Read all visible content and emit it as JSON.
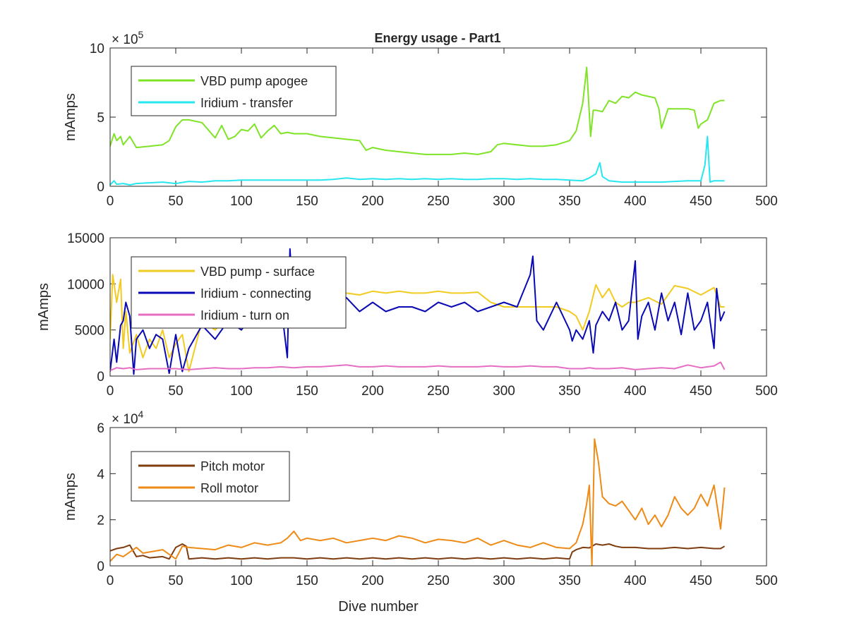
{
  "title": "Energy usage - Part1",
  "chart_data": [
    {
      "type": "line",
      "title": "Energy usage - Part1",
      "ylabel": "mAmps",
      "xlabel": "",
      "xlim": [
        0,
        500
      ],
      "ylim": [
        0,
        1000000
      ],
      "x_ticks": [
        0,
        50,
        100,
        150,
        200,
        250,
        300,
        350,
        400,
        450,
        500
      ],
      "y_ticks": [
        0,
        500000,
        1000000
      ],
      "y_tick_labels": [
        "0",
        "5",
        "10"
      ],
      "exponent_label": "× 10^5",
      "legend_location": "top-left",
      "series": [
        {
          "name": "VBD pump apogee",
          "color": "#7fe326",
          "x": [
            0,
            3,
            5,
            8,
            10,
            15,
            20,
            30,
            40,
            45,
            50,
            55,
            60,
            70,
            80,
            85,
            90,
            95,
            100,
            105,
            110,
            115,
            120,
            125,
            130,
            135,
            140,
            150,
            160,
            170,
            180,
            190,
            195,
            200,
            210,
            220,
            230,
            240,
            250,
            260,
            270,
            280,
            290,
            295,
            300,
            310,
            320,
            330,
            340,
            350,
            355,
            360,
            363,
            366,
            368,
            370,
            375,
            380,
            385,
            390,
            395,
            400,
            405,
            410,
            415,
            418,
            420,
            425,
            430,
            435,
            440,
            445,
            448,
            450,
            455,
            460,
            465,
            468
          ],
          "y": [
            290000,
            380000,
            330000,
            360000,
            300000,
            360000,
            280000,
            290000,
            300000,
            330000,
            430000,
            480000,
            480000,
            460000,
            350000,
            440000,
            340000,
            360000,
            410000,
            400000,
            450000,
            350000,
            400000,
            440000,
            380000,
            390000,
            380000,
            380000,
            360000,
            350000,
            340000,
            330000,
            260000,
            280000,
            260000,
            250000,
            240000,
            230000,
            230000,
            230000,
            240000,
            230000,
            250000,
            300000,
            310000,
            300000,
            290000,
            290000,
            300000,
            330000,
            400000,
            600000,
            860000,
            360000,
            550000,
            550000,
            540000,
            620000,
            600000,
            650000,
            640000,
            680000,
            660000,
            650000,
            640000,
            560000,
            420000,
            560000,
            560000,
            560000,
            560000,
            550000,
            420000,
            450000,
            480000,
            600000,
            620000,
            620000
          ]
        },
        {
          "name": "Iridium - transfer",
          "color": "#26e6f0",
          "x": [
            0,
            3,
            5,
            10,
            15,
            20,
            30,
            40,
            50,
            60,
            70,
            80,
            90,
            100,
            110,
            120,
            130,
            140,
            150,
            160,
            170,
            180,
            190,
            200,
            210,
            220,
            230,
            240,
            250,
            260,
            270,
            280,
            290,
            300,
            310,
            320,
            330,
            340,
            350,
            360,
            365,
            370,
            373,
            375,
            380,
            390,
            400,
            410,
            420,
            430,
            440,
            450,
            453,
            455,
            457,
            460,
            465,
            468
          ],
          "y": [
            10000,
            40000,
            15000,
            20000,
            10000,
            20000,
            25000,
            30000,
            20000,
            35000,
            30000,
            40000,
            40000,
            45000,
            45000,
            45000,
            45000,
            45000,
            45000,
            45000,
            50000,
            60000,
            50000,
            55000,
            50000,
            55000,
            50000,
            55000,
            50000,
            55000,
            50000,
            50000,
            55000,
            55000,
            50000,
            55000,
            50000,
            50000,
            45000,
            40000,
            60000,
            90000,
            170000,
            70000,
            40000,
            30000,
            30000,
            30000,
            30000,
            35000,
            40000,
            40000,
            150000,
            360000,
            30000,
            40000,
            40000,
            40000
          ]
        }
      ]
    },
    {
      "type": "line",
      "title": "",
      "ylabel": "mAmps",
      "xlabel": "",
      "xlim": [
        0,
        500
      ],
      "ylim": [
        0,
        15000
      ],
      "x_ticks": [
        0,
        50,
        100,
        150,
        200,
        250,
        300,
        350,
        400,
        450,
        500
      ],
      "y_ticks": [
        0,
        5000,
        10000,
        15000
      ],
      "y_tick_labels": [
        "0",
        "5000",
        "10000",
        "15000"
      ],
      "legend_location": "top-left",
      "series": [
        {
          "name": "VBD pump - surface",
          "color": "#f2cb21",
          "x": [
            0,
            2,
            5,
            8,
            10,
            12,
            15,
            20,
            25,
            30,
            35,
            40,
            45,
            50,
            55,
            60,
            70,
            80,
            90,
            100,
            110,
            120,
            130,
            140,
            150,
            160,
            170,
            180,
            190,
            200,
            210,
            220,
            230,
            240,
            250,
            260,
            270,
            280,
            290,
            300,
            310,
            320,
            330,
            340,
            350,
            355,
            360,
            365,
            370,
            375,
            380,
            385,
            390,
            395,
            400,
            410,
            420,
            430,
            440,
            450,
            460,
            465,
            468
          ],
          "y": [
            4000,
            11000,
            8000,
            10500,
            3000,
            7000,
            2500,
            4500,
            2000,
            4000,
            3000,
            5000,
            2000,
            3500,
            4500,
            500,
            6000,
            5000,
            6500,
            5500,
            7000,
            6000,
            7500,
            6500,
            8000,
            7000,
            8500,
            9000,
            8800,
            9200,
            9000,
            9200,
            9000,
            9000,
            9200,
            9000,
            9000,
            9100,
            8000,
            7500,
            7500,
            7500,
            7500,
            7500,
            7000,
            6500,
            5000,
            7000,
            9900,
            8500,
            9500,
            8000,
            7500,
            8000,
            8000,
            8500,
            7800,
            9800,
            9500,
            8800,
            9600,
            7500,
            7500
          ]
        },
        {
          "name": "Iridium - connecting",
          "color": "#0a0ab4",
          "x": [
            0,
            3,
            5,
            8,
            10,
            12,
            15,
            18,
            20,
            25,
            30,
            35,
            40,
            45,
            50,
            55,
            60,
            70,
            80,
            90,
            100,
            110,
            120,
            130,
            135,
            137,
            140,
            150,
            160,
            170,
            180,
            190,
            200,
            210,
            220,
            230,
            240,
            250,
            260,
            270,
            280,
            290,
            300,
            310,
            320,
            322,
            325,
            330,
            340,
            350,
            352,
            355,
            360,
            365,
            368,
            370,
            375,
            380,
            385,
            390,
            395,
            400,
            402,
            405,
            410,
            415,
            420,
            425,
            430,
            435,
            440,
            445,
            450,
            455,
            460,
            462,
            465,
            468
          ],
          "y": [
            500,
            4000,
            1500,
            5500,
            6000,
            8000,
            6500,
            200,
            4000,
            5000,
            3000,
            4500,
            4000,
            300,
            4500,
            500,
            3000,
            5500,
            4000,
            6000,
            5000,
            7000,
            6000,
            8000,
            2000,
            13800,
            7000,
            8000,
            6000,
            7500,
            8500,
            7000,
            8000,
            7000,
            7500,
            7500,
            7000,
            8000,
            7500,
            8000,
            7000,
            7500,
            8000,
            7500,
            11000,
            13000,
            6000,
            5000,
            8000,
            5000,
            3800,
            5000,
            4000,
            6000,
            2500,
            5500,
            7000,
            6000,
            8000,
            5000,
            6000,
            12500,
            4000,
            6500,
            8000,
            5000,
            9000,
            6000,
            8000,
            4500,
            9000,
            5000,
            6000,
            8000,
            3000,
            9500,
            6000,
            7000
          ]
        },
        {
          "name": "Iridium - turn on",
          "color": "#e66ec2",
          "x": [
            0,
            5,
            10,
            15,
            20,
            30,
            40,
            50,
            60,
            70,
            80,
            90,
            100,
            110,
            120,
            130,
            140,
            150,
            160,
            170,
            180,
            190,
            200,
            210,
            220,
            230,
            240,
            250,
            260,
            270,
            280,
            290,
            300,
            310,
            320,
            330,
            340,
            350,
            360,
            365,
            370,
            380,
            390,
            400,
            410,
            420,
            430,
            440,
            450,
            460,
            465,
            468
          ],
          "y": [
            600,
            900,
            800,
            900,
            700,
            800,
            800,
            800,
            700,
            800,
            900,
            800,
            800,
            900,
            900,
            1000,
            900,
            1000,
            1000,
            1100,
            1200,
            1000,
            1000,
            1100,
            1000,
            1000,
            1000,
            1100,
            1000,
            1000,
            1000,
            1100,
            1000,
            1000,
            1100,
            1000,
            1000,
            800,
            800,
            900,
            800,
            800,
            900,
            700,
            800,
            900,
            800,
            1200,
            900,
            1100,
            1500,
            700
          ]
        }
      ]
    },
    {
      "type": "line",
      "title": "",
      "ylabel": "mAmps",
      "xlabel": "Dive number",
      "xlim": [
        0,
        500
      ],
      "ylim": [
        0,
        60000
      ],
      "x_ticks": [
        0,
        50,
        100,
        150,
        200,
        250,
        300,
        350,
        400,
        450,
        500
      ],
      "y_ticks": [
        0,
        20000,
        40000,
        60000
      ],
      "y_tick_labels": [
        "0",
        "2",
        "4",
        "6"
      ],
      "exponent_label": "× 10^4",
      "legend_location": "top-left",
      "series": [
        {
          "name": "Pitch motor",
          "color": "#7e3c0f",
          "x": [
            0,
            5,
            10,
            15,
            20,
            25,
            30,
            40,
            45,
            50,
            55,
            58,
            60,
            70,
            80,
            90,
            100,
            110,
            120,
            130,
            140,
            150,
            160,
            170,
            180,
            190,
            200,
            210,
            220,
            230,
            240,
            250,
            260,
            270,
            280,
            290,
            300,
            310,
            320,
            330,
            340,
            350,
            352,
            355,
            360,
            365,
            370,
            375,
            380,
            385,
            390,
            400,
            410,
            420,
            430,
            440,
            450,
            460,
            465,
            468
          ],
          "y": [
            6500,
            7500,
            8000,
            9000,
            4000,
            4500,
            3500,
            4000,
            3000,
            8000,
            9500,
            8500,
            3000,
            3500,
            3000,
            3500,
            3000,
            3500,
            3000,
            3500,
            3500,
            3000,
            3500,
            3000,
            3500,
            3000,
            3500,
            3000,
            3500,
            3000,
            3500,
            3000,
            3500,
            3000,
            3500,
            3000,
            3500,
            3000,
            3500,
            3000,
            3500,
            3000,
            6000,
            7000,
            8000,
            7800,
            9500,
            9000,
            9500,
            8500,
            8000,
            8000,
            7500,
            7500,
            8000,
            7500,
            8000,
            7500,
            7500,
            8500
          ]
        },
        {
          "name": "Roll motor",
          "color": "#ee8a16",
          "x": [
            0,
            5,
            10,
            15,
            20,
            25,
            30,
            40,
            45,
            50,
            55,
            60,
            70,
            80,
            90,
            100,
            110,
            120,
            130,
            135,
            140,
            145,
            150,
            160,
            170,
            180,
            190,
            200,
            210,
            220,
            230,
            240,
            250,
            260,
            270,
            280,
            290,
            300,
            310,
            320,
            330,
            340,
            350,
            355,
            360,
            363,
            365,
            367,
            369,
            372,
            375,
            380,
            385,
            390,
            395,
            400,
            405,
            410,
            415,
            420,
            425,
            430,
            435,
            440,
            445,
            450,
            455,
            460,
            465,
            468
          ],
          "y": [
            2000,
            5000,
            4000,
            6000,
            8000,
            5500,
            6000,
            7000,
            5000,
            3000,
            8500,
            8000,
            7500,
            7000,
            9000,
            8000,
            10000,
            9000,
            10000,
            12000,
            15000,
            11000,
            12000,
            11000,
            12000,
            10000,
            11000,
            12000,
            11000,
            13000,
            12000,
            10000,
            11500,
            11000,
            10000,
            12000,
            9000,
            11000,
            9000,
            8000,
            10000,
            8000,
            7500,
            10000,
            18000,
            27000,
            35000,
            0,
            55000,
            45000,
            30000,
            27000,
            26000,
            28000,
            24000,
            20000,
            25000,
            18000,
            22000,
            17000,
            22000,
            30000,
            25000,
            22000,
            25000,
            31000,
            26000,
            35000,
            16000,
            34000
          ]
        }
      ]
    }
  ]
}
